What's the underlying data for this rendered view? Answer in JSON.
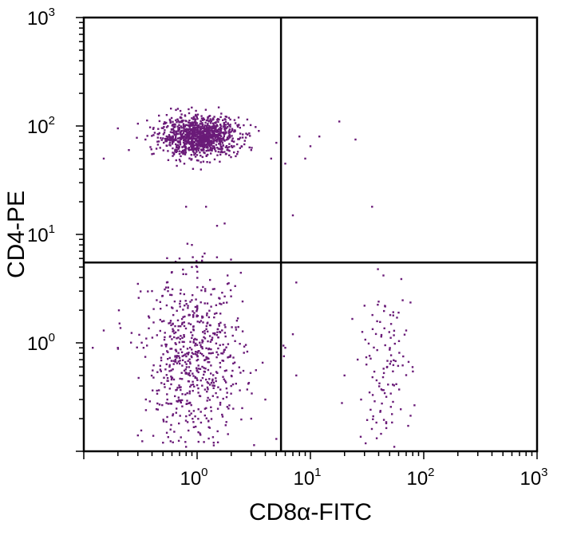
{
  "chart_data": {
    "type": "scatter",
    "xlabel": "CD8α-FITC",
    "ylabel": "CD4-PE",
    "xscale": "log",
    "yscale": "log",
    "xlim": [
      0.1,
      1000
    ],
    "ylim": [
      0.1,
      1000
    ],
    "grid": false,
    "legend": "none",
    "point_color": "#6a1b78",
    "xticks": [
      {
        "base": "10",
        "exp": "0",
        "value": 1
      },
      {
        "base": "10",
        "exp": "1",
        "value": 10
      },
      {
        "base": "10",
        "exp": "2",
        "value": 100
      },
      {
        "base": "10",
        "exp": "3",
        "value": 1000
      }
    ],
    "yticks": [
      {
        "base": "10",
        "exp": "0",
        "value": 1
      },
      {
        "base": "10",
        "exp": "1",
        "value": 10
      },
      {
        "base": "10",
        "exp": "2",
        "value": 100
      },
      {
        "base": "10",
        "exp": "3",
        "value": 1000
      }
    ],
    "gates": {
      "x": 5.5,
      "y": 5.5
    },
    "populations": [
      {
        "quadrant": "upper-left",
        "x_center": 1.05,
        "x_spread_log": 0.17,
        "y_center": 80,
        "y_spread_log": 0.09,
        "count": 1100
      },
      {
        "quadrant": "lower-left",
        "x_center": 0.95,
        "x_spread_log": 0.22,
        "y_center": 0.7,
        "y_spread_log": 0.38,
        "count": 650
      },
      {
        "quadrant": "lower-right",
        "x_center": 45,
        "x_spread_log": 0.12,
        "y_center": 0.6,
        "y_spread_log": 0.35,
        "count": 110
      }
    ],
    "sparse_points": [
      [
        0.15,
        50
      ],
      [
        0.2,
        95
      ],
      [
        0.25,
        60
      ],
      [
        0.3,
        105
      ],
      [
        0.35,
        75
      ],
      [
        0.4,
        55
      ],
      [
        3.0,
        60
      ],
      [
        3.5,
        90
      ],
      [
        4.5,
        50
      ],
      [
        5.0,
        70
      ],
      [
        8,
        80
      ],
      [
        9,
        50
      ],
      [
        10,
        65
      ],
      [
        12,
        80
      ],
      [
        18,
        110
      ],
      [
        25,
        75
      ],
      [
        7,
        15
      ],
      [
        35,
        18
      ],
      [
        6,
        45
      ],
      [
        0.8,
        18
      ],
      [
        0.9,
        8
      ],
      [
        1.0,
        5
      ],
      [
        1.2,
        18
      ],
      [
        1.5,
        12
      ],
      [
        0.7,
        6
      ],
      [
        0.3,
        3.5
      ],
      [
        0.4,
        3.0
      ],
      [
        0.6,
        4.5
      ],
      [
        0.9,
        5.0
      ],
      [
        1.3,
        3.8
      ],
      [
        7.5,
        3.6
      ],
      [
        0.15,
        1.3
      ],
      [
        0.2,
        0.9
      ],
      [
        0.3,
        0.14
      ],
      [
        0.5,
        0.12
      ],
      [
        0.8,
        0.11
      ],
      [
        1.4,
        0.12
      ],
      [
        3.0,
        0.2
      ],
      [
        4.0,
        0.3
      ],
      [
        5.0,
        0.13
      ],
      [
        7.0,
        1.2
      ],
      [
        7.5,
        0.5
      ],
      [
        6.0,
        0.9
      ],
      [
        20,
        0.5
      ],
      [
        28,
        0.3
      ],
      [
        60,
        1.9
      ],
      [
        70,
        1.3
      ],
      [
        55,
        0.11
      ],
      [
        30,
        2.2
      ],
      [
        40,
        2.4
      ],
      [
        0.12,
        0.9
      ],
      [
        2.0,
        0.4
      ],
      [
        2.5,
        0.25
      ]
    ]
  }
}
